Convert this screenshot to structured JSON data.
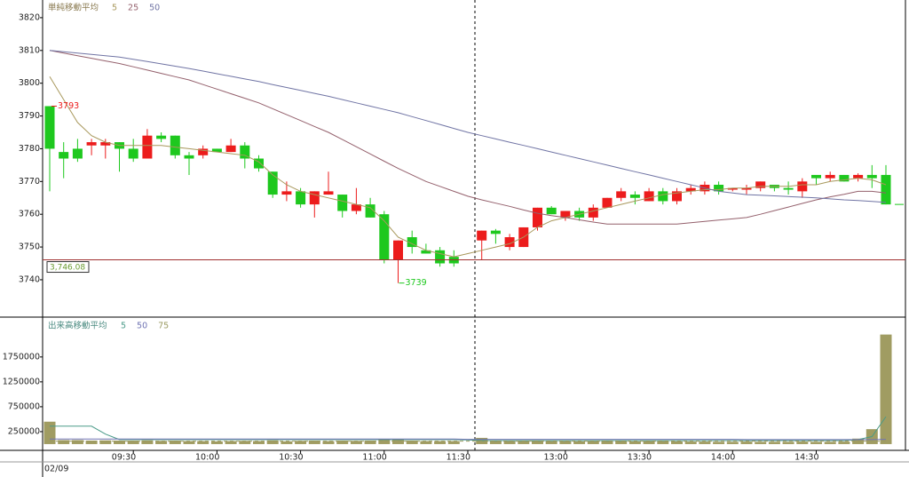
{
  "chart_data": [
    {
      "type": "candlestick",
      "title": "単純移動平均",
      "open": [
        3793,
        3779,
        3780,
        3781,
        3781,
        3782,
        3780,
        3777,
        3784,
        3784,
        3778,
        3778,
        3780,
        3779,
        3781,
        3777,
        3773,
        3766,
        3767,
        3763,
        3766,
        3766,
        3761,
        3763,
        3760,
        3746,
        3753,
        3749,
        3749,
        3747,
        null,
        3752,
        3755,
        3750,
        3750,
        3756,
        3762,
        3759,
        3761,
        3759,
        3762,
        3765,
        3766,
        3764,
        3767,
        3764,
        3767,
        3767,
        3769,
        3767.5,
        3767.5,
        3768,
        3769,
        3768,
        3767,
        3772,
        3771,
        3772,
        3771,
        3772,
        3772
      ],
      "high": [
        3793,
        3782,
        3783,
        3783,
        3783,
        3782,
        3783,
        3786,
        3785,
        3784,
        3779,
        3781,
        3780,
        3783,
        3782,
        3778,
        3773,
        3770,
        3768,
        3767,
        3773,
        3766,
        3768,
        3765,
        3761,
        3752,
        3755,
        3751,
        3750,
        3749,
        null,
        3755,
        3755.5,
        3754,
        3756,
        3762,
        3762.5,
        3761,
        3762,
        3763,
        3765,
        3768,
        3767,
        3768,
        3768,
        3768,
        3769,
        3770,
        3770,
        3768,
        3769,
        3770,
        3769,
        3770,
        3771,
        3772,
        3773,
        3772,
        3772.5,
        3775,
        3775
      ],
      "low": [
        3767,
        3771,
        3776,
        3778,
        3777,
        3773,
        3776,
        3777,
        3782,
        3777,
        3772,
        3777,
        3779,
        3779,
        3774,
        3773,
        3765,
        3764,
        3762,
        3759,
        3766,
        3759,
        3760,
        3759,
        3745,
        3739,
        3748,
        3748,
        3744,
        3744,
        null,
        3746,
        3751,
        3749,
        3750,
        3755,
        3760,
        3758,
        3758,
        3758,
        3762,
        3764,
        3763,
        3764,
        3763,
        3763,
        3766,
        3766,
        3766,
        3767,
        3766,
        3767,
        3767,
        3766,
        3765,
        3769,
        3770,
        3770,
        3770,
        3768,
        3763
      ],
      "close": [
        3780,
        3777,
        3777,
        3782,
        3782,
        3780,
        3777,
        3784,
        3783,
        3778,
        3777,
        3780,
        3779,
        3781,
        3777,
        3774,
        3766,
        3767,
        3763,
        3767,
        3767,
        3761,
        3763,
        3759,
        3746,
        3752,
        3750,
        3748,
        3745,
        3745,
        null,
        3755,
        3754,
        3753,
        3756,
        3762,
        3760,
        3761,
        3759,
        3762,
        3765,
        3767,
        3765,
        3767,
        3764,
        3767,
        3768,
        3769,
        3767,
        3768,
        3768,
        3770,
        3768,
        3767.5,
        3770,
        3771,
        3772,
        3770,
        3772,
        3771,
        3763
      ],
      "up_color": "#ec1c1c",
      "down_color": "#1ec81e",
      "series": [
        {
          "name": "5",
          "color": "#a8985c",
          "values": [
            3802,
            3795,
            3788,
            3784,
            3782,
            3781,
            3781,
            3781,
            3781,
            3780.5,
            3780,
            3779.5,
            3779,
            3778.5,
            3778,
            3776,
            3772,
            3769,
            3767,
            3766,
            3765,
            3764,
            3763,
            3762,
            3758,
            3753,
            3751,
            3749,
            3748,
            3747,
            3748,
            3749,
            3750,
            3751,
            3753,
            3756,
            3758,
            3759,
            3760,
            3761,
            3762,
            3763,
            3764,
            3765,
            3766,
            3766.5,
            3767,
            3767.5,
            3767.5,
            3768,
            3768,
            3768.5,
            3768.5,
            3768.5,
            3769,
            3769,
            3770,
            3770.5,
            3771,
            3770.5,
            3769
          ]
        },
        {
          "name": "25",
          "color": "#94606c",
          "values": [
            3810,
            3809.2,
            3808.4,
            3807.6,
            3806.8,
            3806,
            3805,
            3804,
            3803,
            3802,
            3801,
            3799.6,
            3798.2,
            3796.8,
            3795.4,
            3794,
            3792.2,
            3790.4,
            3788.6,
            3786.8,
            3785,
            3782.8,
            3780.6,
            3778.4,
            3776.2,
            3774,
            3772,
            3770,
            3768.5,
            3767,
            3765.5,
            3764.4,
            3763.4,
            3762.4,
            3761.3,
            3760.3,
            3759.6,
            3759,
            3758.3,
            3757.6,
            3757,
            3757,
            3757,
            3757,
            3757,
            3757,
            3757.4,
            3757.8,
            3758.2,
            3758.6,
            3759,
            3760,
            3761.1,
            3762.2,
            3763.3,
            3764.4,
            3765.3,
            3766.1,
            3767,
            3767,
            3766.5
          ]
        },
        {
          "name": "50",
          "color": "#7074a4",
          "values": [
            3810,
            3809.6,
            3809.2,
            3808.8,
            3808.4,
            3808,
            3807.3,
            3806.6,
            3805.9,
            3805.2,
            3804.5,
            3803.7,
            3802.9,
            3802.1,
            3801.3,
            3800.5,
            3799.6,
            3798.7,
            3797.8,
            3796.9,
            3796,
            3795,
            3794,
            3793,
            3792,
            3791,
            3789.8,
            3788.6,
            3787.4,
            3786.2,
            3785,
            3784,
            3783,
            3782,
            3781,
            3780,
            3779,
            3778,
            3777,
            3776,
            3775,
            3774,
            3773,
            3772,
            3771,
            3770,
            3769,
            3768,
            3767,
            3766.5,
            3766,
            3765.8,
            3765.6,
            3765.4,
            3765.2,
            3765,
            3764.7,
            3764.4,
            3764.2,
            3763.9,
            3763.6
          ]
        }
      ],
      "price_line": {
        "value": 3746.08,
        "label": "3,746.08"
      },
      "ylim": [
        3728.6,
        3825.4
      ],
      "yticks": [
        3740,
        3750,
        3760,
        3770,
        3780,
        3790,
        3800,
        3810,
        3820
      ]
    },
    {
      "type": "bar",
      "title": "出来高移動平均",
      "color": "#a09c62",
      "values": [
        450000,
        80000,
        80000,
        70000,
        75000,
        70000,
        70000,
        75000,
        65000,
        70000,
        60000,
        60000,
        55000,
        60000,
        65000,
        60000,
        75000,
        55000,
        65000,
        70000,
        60000,
        70000,
        65000,
        70000,
        100000,
        95000,
        70000,
        60000,
        60000,
        60000,
        null,
        125000,
        70000,
        60000,
        75000,
        80000,
        60000,
        60000,
        55000,
        60000,
        70000,
        65000,
        55000,
        60000,
        60000,
        55000,
        50000,
        50000,
        45000,
        45000,
        50000,
        45000,
        45000,
        45000,
        50000,
        45000,
        45000,
        50000,
        110000,
        300000,
        2200000
      ],
      "series": [
        {
          "name": "5",
          "color": "#4a9a88",
          "values": [
            360000,
            360000,
            360000,
            360000,
            200000,
            90000,
            90000,
            90000,
            90000,
            90000,
            90000,
            90000,
            90000,
            90000,
            90000,
            90000,
            90000,
            90000,
            90000,
            90000,
            90000,
            90000,
            90000,
            90000,
            90000,
            90000,
            90000,
            90000,
            90000,
            90000,
            85000,
            70000,
            70000,
            70000,
            70000,
            70000,
            70000,
            70000,
            70000,
            70000,
            70000,
            70000,
            70000,
            70000,
            70000,
            70000,
            70000,
            70000,
            70000,
            70000,
            70000,
            70000,
            70000,
            70000,
            70000,
            70000,
            70000,
            70000,
            90000,
            150000,
            550000
          ]
        },
        {
          "name": "50",
          "color": "#7074b4",
          "values": [
            100000,
            100000,
            100000,
            100000,
            100000,
            100000,
            100000,
            100000,
            100000,
            100000,
            100000,
            100000,
            100000,
            100000,
            100000,
            100000,
            100000,
            100000,
            100000,
            100000,
            100000,
            100000,
            100000,
            100000,
            100000,
            100000,
            100000,
            100000,
            100000,
            100000,
            95000,
            95000,
            95000,
            95000,
            95000,
            95000,
            95000,
            95000,
            95000,
            95000,
            95000,
            95000,
            95000,
            95000,
            95000,
            95000,
            95000,
            95000,
            95000,
            95000,
            90000,
            90000,
            90000,
            90000,
            90000,
            90000,
            90000,
            90000,
            90000,
            90000,
            95000
          ]
        },
        {
          "name": "75",
          "color": "#9a9a60",
          "dashed": true,
          "values": [
            60000,
            60000,
            60000,
            60000,
            60000,
            60000,
            60000,
            60000,
            60000,
            60000,
            60000,
            60000,
            60000,
            60000,
            60000,
            60000,
            60000,
            60000,
            60000,
            60000,
            60000,
            60000,
            60000,
            60000,
            60000,
            60000,
            60000,
            60000,
            60000,
            60000,
            60000,
            60000,
            60000,
            60000,
            60000,
            60000,
            60000,
            60000,
            60000,
            60000,
            60000,
            60000,
            60000,
            60000,
            60000,
            60000,
            60000,
            60000,
            60000,
            60000,
            60000,
            60000,
            60000,
            60000,
            60000,
            60000,
            60000,
            60000,
            60000,
            60000,
            60000
          ]
        }
      ],
      "ylim": [
        -90000,
        2550000
      ],
      "yticks": [
        250000,
        750000,
        1250000,
        1750000
      ],
      "xticks": [
        {
          "value": 6,
          "label": "09:30"
        },
        {
          "value": 12,
          "label": "10:00"
        },
        {
          "value": 18,
          "label": "10:30"
        },
        {
          "value": 24,
          "label": "11:00"
        },
        {
          "value": 30,
          "label": "11:30"
        },
        {
          "value": 37,
          "label": "13:00"
        },
        {
          "value": 43,
          "label": "13:30"
        },
        {
          "value": 49,
          "label": "14:00"
        },
        {
          "value": 55,
          "label": "14:30"
        }
      ],
      "date_label": "02/09"
    }
  ]
}
